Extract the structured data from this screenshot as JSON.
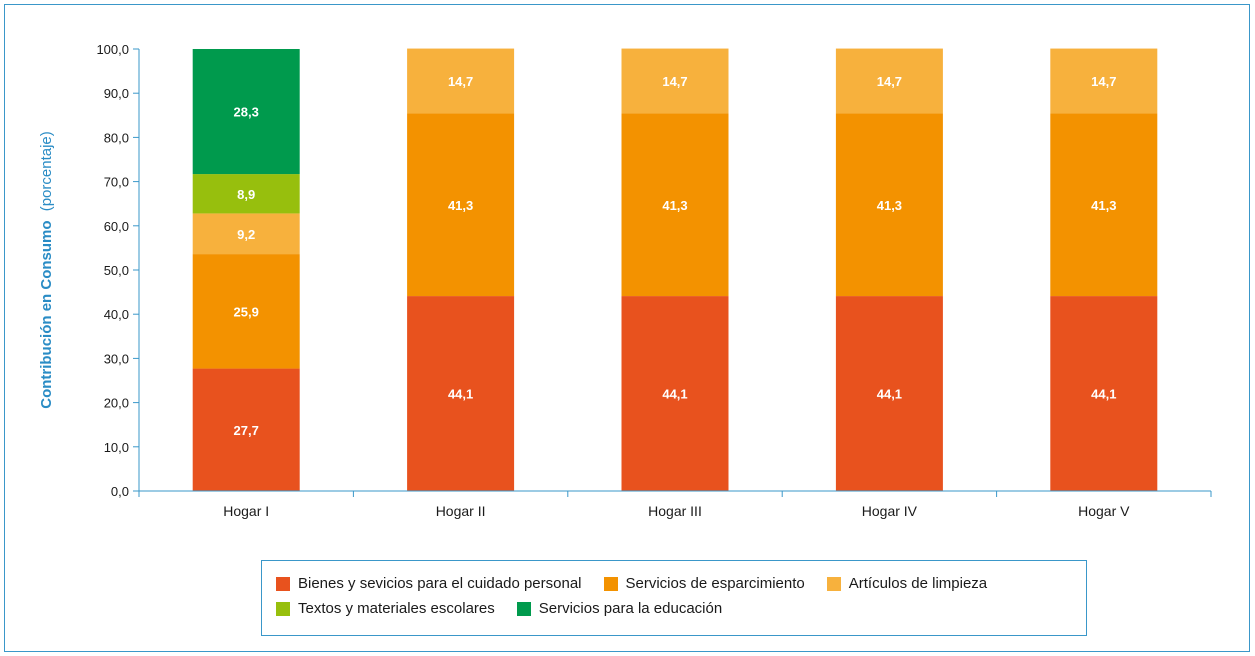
{
  "chart_data": {
    "type": "bar",
    "stacked": true,
    "categories": [
      "Hogar I",
      "Hogar II",
      "Hogar III",
      "Hogar IV",
      "Hogar V"
    ],
    "series": [
      {
        "name": "Bienes y sevicios para el cuidado personal",
        "color": "#e8521e",
        "values": [
          27.7,
          44.1,
          44.1,
          44.1,
          44.1
        ],
        "labels": [
          "27,7",
          "44,1",
          "44,1",
          "44,1",
          "44,1"
        ]
      },
      {
        "name": "Servicios de esparcimiento",
        "color": "#f39200",
        "values": [
          25.9,
          41.3,
          41.3,
          41.3,
          41.3
        ],
        "labels": [
          "25,9",
          "41,3",
          "41,3",
          "41,3",
          "41,3"
        ]
      },
      {
        "name": "Artículos de limpieza",
        "color": "#f7b13d",
        "values": [
          9.2,
          14.7,
          14.7,
          14.7,
          14.7
        ],
        "labels": [
          "9,2",
          "14,7",
          "14,7",
          "14,7",
          "14,7"
        ]
      },
      {
        "name": "Textos y materiales escolares",
        "color": "#97bf0d",
        "values": [
          8.9,
          0,
          0,
          0,
          0
        ],
        "labels": [
          "8,9",
          "",
          "",
          "",
          ""
        ]
      },
      {
        "name": "Servicios para la educación",
        "color": "#009a4d",
        "values": [
          28.3,
          0,
          0,
          0,
          0
        ],
        "labels": [
          "28,3",
          "",
          "",
          "",
          ""
        ]
      }
    ],
    "ylabel_bold": "Contribución en Consumo",
    "ylabel_normal": "(porcentaje)",
    "ylim": [
      0,
      100
    ],
    "yticks": [
      "0,0",
      "10,0",
      "20,0",
      "30,0",
      "40,0",
      "50,0",
      "60,0",
      "70,0",
      "80,0",
      "90,0",
      "100,0"
    ],
    "grid": false,
    "legend_position": "bottom"
  },
  "colors": {
    "axis": "#3a97c9",
    "frame": "#3a97c9",
    "ylabel": "#2a8cc5"
  }
}
